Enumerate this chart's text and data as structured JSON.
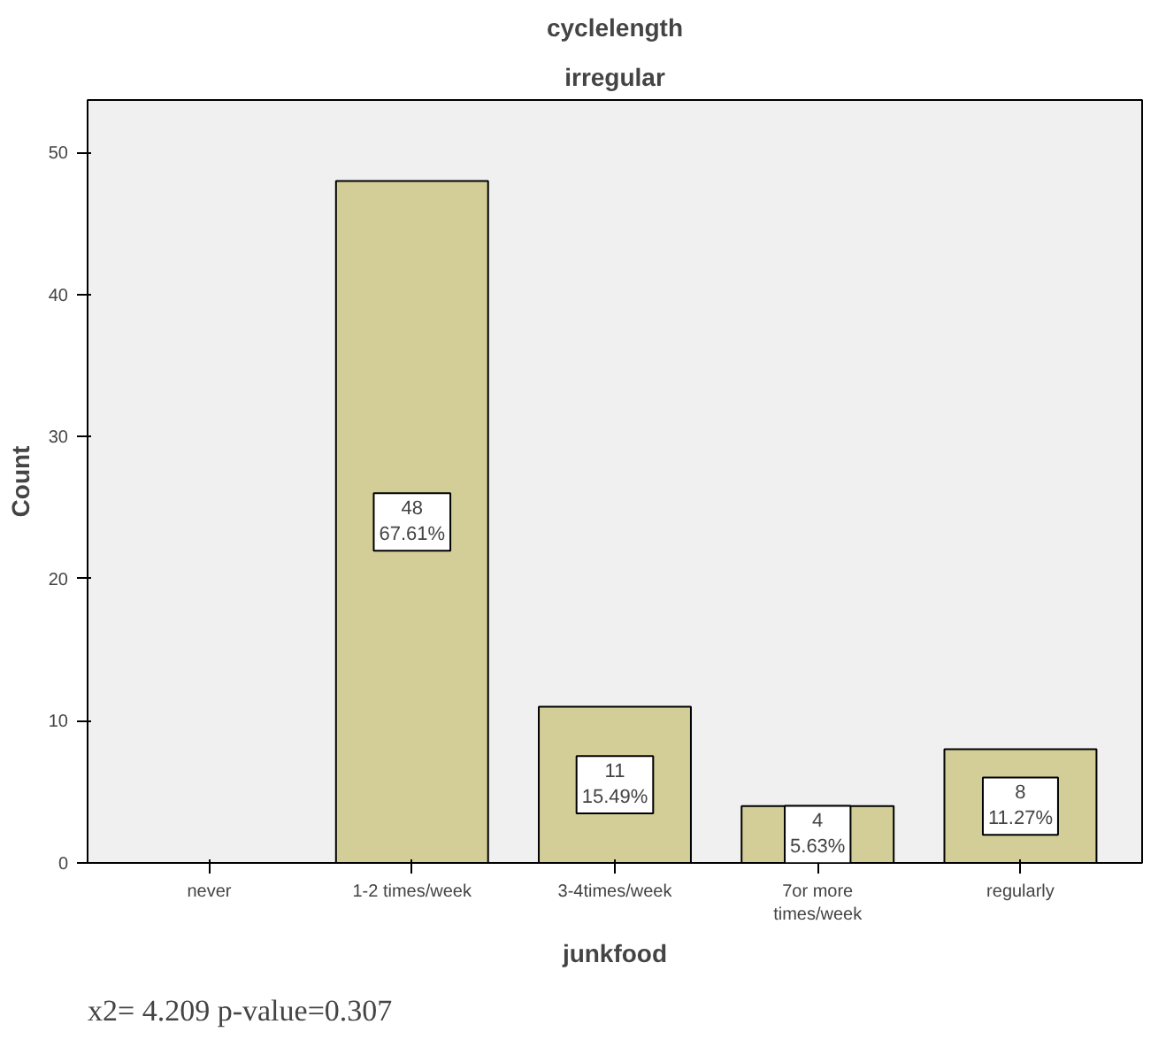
{
  "chart_data": {
    "type": "bar",
    "title": "cyclelength",
    "subtitle": "irregular",
    "xlabel": "junkfood",
    "ylabel": "Count",
    "categories": [
      "never",
      "1-2 times/week",
      "3-4times/week",
      "7or more\ntimes/week",
      "regularly"
    ],
    "values": [
      null,
      48,
      11,
      4,
      8
    ],
    "value_labels": [
      null,
      "48\n67.61%",
      "11\n15.49%",
      "4\n5.63%",
      "8\n11.27%"
    ],
    "color": "#d3ce97",
    "ylim": [
      0,
      53.7
    ],
    "yticks": [
      0,
      10,
      20,
      30,
      40,
      50
    ],
    "grid": false,
    "annotations": [
      "x2= 4.209      p-value=0.307"
    ]
  }
}
